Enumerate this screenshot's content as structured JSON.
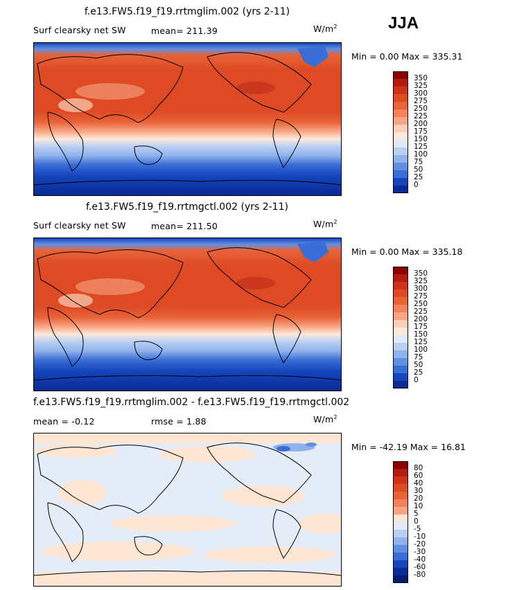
{
  "season": "JJA",
  "panels": [
    {
      "title": "f.e13.FW5.f19_f19.rrtmglim.002 (yrs 2-11)",
      "left_label": "Surf clearsky net SW",
      "center_label": "mean= 211.39",
      "units": "W/m",
      "units_exp": "2",
      "minmax": "Min =    0.00 Max = 335.31",
      "colorbar": {
        "labels": [
          "350",
          "325",
          "300",
          "275",
          "250",
          "225",
          "200",
          "175",
          "150",
          "125",
          "100",
          "75",
          "50",
          "25",
          "0"
        ],
        "colors": [
          "#8b0000",
          "#b51c0c",
          "#d0321a",
          "#dd4a24",
          "#e96338",
          "#f3825a",
          "#f8a584",
          "#fbd0b8",
          "#fde9dc",
          "#dfe9f8",
          "#b9cff2",
          "#8fb2ec",
          "#6090e2",
          "#3a6ed6",
          "#1446be",
          "#0a2a96"
        ]
      },
      "chart_data": {
        "type": "heatmap",
        "title": "f.e13.FW5.f19_f19.rrtmglim.002 (yrs 2-11)",
        "variable": "Surf clearsky net SW",
        "units": "W/m2",
        "mean": 211.39,
        "min": 0.0,
        "max": 335.31,
        "levels": [
          0,
          25,
          50,
          75,
          100,
          125,
          150,
          175,
          200,
          225,
          250,
          275,
          300,
          325,
          350
        ]
      }
    },
    {
      "title": "f.e13.FW5.f19_f19.rrtmgctl.002 (yrs 2-11)",
      "left_label": "Surf clearsky net SW",
      "center_label": "mean= 211.50",
      "units": "W/m",
      "units_exp": "2",
      "minmax": "Min =    0.00 Max = 335.18",
      "colorbar": {
        "labels": [
          "350",
          "325",
          "300",
          "275",
          "250",
          "225",
          "200",
          "175",
          "150",
          "125",
          "100",
          "75",
          "50",
          "25",
          "0"
        ],
        "colors": [
          "#8b0000",
          "#b51c0c",
          "#d0321a",
          "#dd4a24",
          "#e96338",
          "#f3825a",
          "#f8a584",
          "#fbd0b8",
          "#fde9dc",
          "#dfe9f8",
          "#b9cff2",
          "#8fb2ec",
          "#6090e2",
          "#3a6ed6",
          "#1446be",
          "#0a2a96"
        ]
      },
      "chart_data": {
        "type": "heatmap",
        "title": "f.e13.FW5.f19_f19.rrtmgctl.002 (yrs 2-11)",
        "variable": "Surf clearsky net SW",
        "units": "W/m2",
        "mean": 211.5,
        "min": 0.0,
        "max": 335.18,
        "levels": [
          0,
          25,
          50,
          75,
          100,
          125,
          150,
          175,
          200,
          225,
          250,
          275,
          300,
          325,
          350
        ]
      }
    },
    {
      "title": "f.e13.FW5.f19_f19.rrtmglim.002 - f.e13.FW5.f19_f19.rrtmgctl.002",
      "left_label": "mean =   -0.12",
      "center_label": "rmse =    1.88",
      "units": "W/m",
      "units_exp": "2",
      "minmax": "Min = -42.19 Max =  16.81",
      "colorbar": {
        "labels": [
          "80",
          "60",
          "40",
          "30",
          "20",
          "10",
          "5",
          "0",
          "-5",
          "-10",
          "-20",
          "-30",
          "-40",
          "-60",
          "-80"
        ],
        "colors": [
          "#8b0000",
          "#b51c0c",
          "#d0321a",
          "#dd4a24",
          "#e96338",
          "#f3825a",
          "#f8a584",
          "#fde5d3",
          "#dfe9f8",
          "#b9cff2",
          "#8fb2ec",
          "#6090e2",
          "#3a6ed6",
          "#1446be",
          "#0a2a96",
          "#061a6e"
        ]
      },
      "chart_data": {
        "type": "heatmap",
        "title": "f.e13.FW5.f19_f19.rrtmglim.002 - f.e13.FW5.f19_f19.rrtmgctl.002",
        "variable": "difference",
        "units": "W/m2",
        "mean": -0.12,
        "rmse": 1.88,
        "min": -42.19,
        "max": 16.81,
        "levels": [
          -80,
          -60,
          -40,
          -30,
          -20,
          -10,
          -5,
          0,
          5,
          10,
          20,
          30,
          40,
          60,
          80
        ]
      }
    }
  ]
}
